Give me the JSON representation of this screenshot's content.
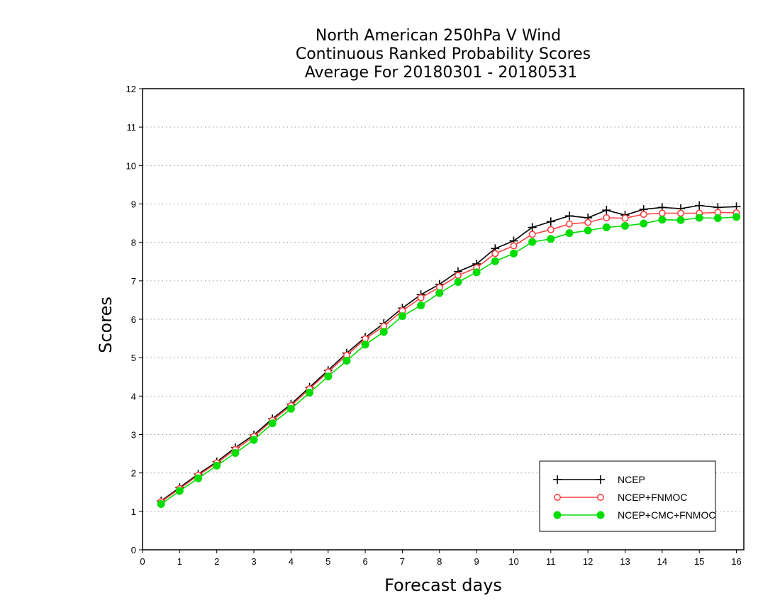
{
  "chart_data": {
    "type": "line",
    "title": [
      "North American 250hPa V Wind",
      "Continuous Ranked Probability Scores",
      "Average For 20180301 - 20180531"
    ],
    "xlabel": "Forecast days",
    "ylabel": "Scores",
    "xlim": [
      0,
      16.2
    ],
    "ylim": [
      0,
      12
    ],
    "xticks": [
      0,
      1,
      2,
      3,
      4,
      5,
      6,
      7,
      8,
      9,
      10,
      11,
      12,
      13,
      14,
      15,
      16
    ],
    "yticks": [
      0,
      1,
      2,
      3,
      4,
      5,
      6,
      7,
      8,
      9,
      10,
      11,
      12
    ],
    "grid": "horizontal dotted",
    "legend_position": "bottom-right",
    "x": [
      0.5,
      1,
      1.5,
      2,
      2.5,
      3,
      3.5,
      4,
      4.5,
      5,
      5.5,
      6,
      6.5,
      7,
      7.5,
      8,
      8.5,
      9,
      9.5,
      10,
      10.5,
      11,
      11.5,
      12,
      12.5,
      13,
      13.5,
      14,
      14.5,
      15,
      15.5,
      16
    ],
    "series": [
      {
        "name": "NCEP",
        "color": "#000000",
        "marker": "plus",
        "values": [
          1.27,
          1.62,
          1.97,
          2.29,
          2.66,
          2.99,
          3.41,
          3.79,
          4.23,
          4.67,
          5.12,
          5.53,
          5.89,
          6.29,
          6.64,
          6.91,
          7.24,
          7.44,
          7.84,
          8.04,
          8.39,
          8.54,
          8.69,
          8.64,
          8.84,
          8.71,
          8.86,
          8.91,
          8.88,
          8.96,
          8.91,
          8.93
        ]
      },
      {
        "name": "NCEP+FNMOC",
        "color": "#ff4040",
        "marker": "open-circle",
        "values": [
          1.25,
          1.59,
          1.94,
          2.26,
          2.61,
          2.95,
          3.37,
          3.75,
          4.19,
          4.63,
          5.06,
          5.49,
          5.82,
          6.22,
          6.56,
          6.83,
          7.14,
          7.34,
          7.71,
          7.91,
          8.21,
          8.33,
          8.48,
          8.52,
          8.64,
          8.63,
          8.73,
          8.76,
          8.76,
          8.76,
          8.78,
          8.77
        ]
      },
      {
        "name": "NCEP+CMC+FNMOC",
        "color": "#00dd00",
        "marker": "filled-circle",
        "values": [
          1.19,
          1.53,
          1.86,
          2.19,
          2.52,
          2.86,
          3.29,
          3.67,
          4.09,
          4.51,
          4.92,
          5.34,
          5.67,
          6.08,
          6.36,
          6.68,
          6.97,
          7.22,
          7.51,
          7.71,
          8.01,
          8.09,
          8.24,
          8.31,
          8.39,
          8.43,
          8.49,
          8.59,
          8.58,
          8.64,
          8.63,
          8.66
        ]
      }
    ]
  }
}
